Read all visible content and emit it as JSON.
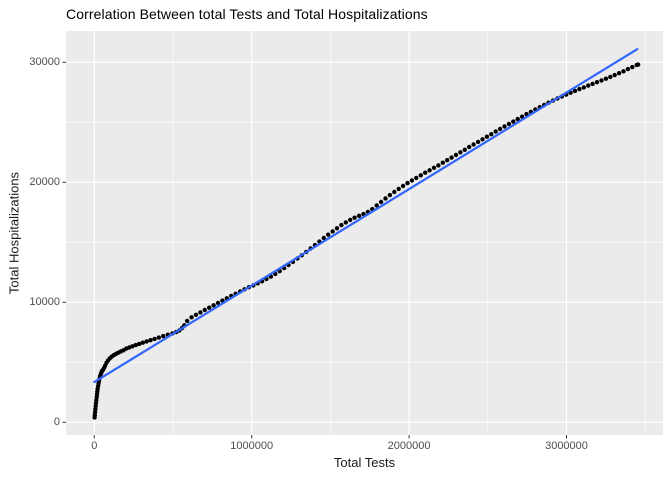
{
  "chart_data": {
    "type": "scatter",
    "title": "Correlation Between total Tests and Total Hospitalizations",
    "xlabel": "Total Tests",
    "ylabel": "Total Hospitalizations",
    "x_ticks": [
      0,
      1000000,
      2000000,
      3000000
    ],
    "x_tick_labels": [
      "0",
      "1000000",
      "2000000",
      "3000000"
    ],
    "x_minor_ticks": [
      500000,
      1500000,
      2500000,
      3500000
    ],
    "y_ticks": [
      0,
      10000,
      20000,
      30000
    ],
    "y_tick_labels": [
      "0",
      "10000",
      "20000",
      "30000"
    ],
    "y_minor_ticks": [
      5000,
      15000,
      25000
    ],
    "xlim": [
      -179800,
      3613000
    ],
    "ylim": [
      -1058,
      32608
    ],
    "grid": "on",
    "legend": "none",
    "theme": {
      "panel_bg": "#EBEBEB",
      "grid_major": "#FFFFFF",
      "grid_minor": "#FFFFFF",
      "axis_tick_color": "#333333",
      "axis_text_color": "#4D4D4D",
      "title_color": "#000000",
      "point_color": "#000000",
      "smooth_line_color": "#3366FF"
    },
    "series": [
      {
        "name": "observations",
        "type": "scatter",
        "color": "#000000",
        "marker_radius": 2.2,
        "points": [
          [
            2000,
            400
          ],
          [
            3000,
            600
          ],
          [
            5000,
            850
          ],
          [
            7000,
            1100
          ],
          [
            9000,
            1350
          ],
          [
            11000,
            1600
          ],
          [
            13000,
            1850
          ],
          [
            15000,
            2100
          ],
          [
            17000,
            2330
          ],
          [
            19000,
            2560
          ],
          [
            21000,
            2780
          ],
          [
            24000,
            3020
          ],
          [
            27000,
            3250
          ],
          [
            30000,
            3460
          ],
          [
            34000,
            3680
          ],
          [
            38000,
            3880
          ],
          [
            43000,
            4080
          ],
          [
            48000,
            4260
          ],
          [
            54000,
            4350
          ],
          [
            61000,
            4500
          ],
          [
            68000,
            4700
          ],
          [
            77000,
            4950
          ],
          [
            87000,
            5150
          ],
          [
            98000,
            5320
          ],
          [
            110000,
            5470
          ],
          [
            123000,
            5590
          ],
          [
            137000,
            5700
          ],
          [
            152000,
            5800
          ],
          [
            168000,
            5900
          ],
          [
            185000,
            6000
          ],
          [
            203000,
            6140
          ],
          [
            222000,
            6230
          ],
          [
            242000,
            6330
          ],
          [
            263000,
            6430
          ],
          [
            285000,
            6530
          ],
          [
            308000,
            6630
          ],
          [
            332000,
            6730
          ],
          [
            357000,
            6840
          ],
          [
            383000,
            6950
          ],
          [
            410000,
            7060
          ],
          [
            438000,
            7180
          ],
          [
            467000,
            7300
          ],
          [
            497000,
            7410
          ],
          [
            520000,
            7520
          ],
          [
            540000,
            7650
          ],
          [
            557000,
            7850
          ],
          [
            572000,
            8080
          ],
          [
            590000,
            8450
          ],
          [
            618000,
            8750
          ],
          [
            646000,
            8960
          ],
          [
            674000,
            9160
          ],
          [
            702000,
            9360
          ],
          [
            730000,
            9550
          ],
          [
            758000,
            9750
          ],
          [
            786000,
            9940
          ],
          [
            814000,
            10140
          ],
          [
            842000,
            10330
          ],
          [
            870000,
            10530
          ],
          [
            898000,
            10710
          ],
          [
            926000,
            10900
          ],
          [
            954000,
            11080
          ],
          [
            982000,
            11260
          ],
          [
            1010000,
            11410
          ],
          [
            1038000,
            11580
          ],
          [
            1066000,
            11750
          ],
          [
            1094000,
            11940
          ],
          [
            1122000,
            12140
          ],
          [
            1150000,
            12370
          ],
          [
            1178000,
            12600
          ],
          [
            1206000,
            12850
          ],
          [
            1234000,
            13110
          ],
          [
            1262000,
            13370
          ],
          [
            1290000,
            13650
          ],
          [
            1318000,
            13920
          ],
          [
            1346000,
            14200
          ],
          [
            1374000,
            14480
          ],
          [
            1402000,
            14770
          ],
          [
            1430000,
            15060
          ],
          [
            1458000,
            15360
          ],
          [
            1486000,
            15630
          ],
          [
            1514000,
            15910
          ],
          [
            1542000,
            16170
          ],
          [
            1570000,
            16430
          ],
          [
            1598000,
            16660
          ],
          [
            1626000,
            16870
          ],
          [
            1654000,
            17050
          ],
          [
            1682000,
            17210
          ],
          [
            1710000,
            17350
          ],
          [
            1738000,
            17530
          ],
          [
            1766000,
            17770
          ],
          [
            1794000,
            18070
          ],
          [
            1822000,
            18360
          ],
          [
            1850000,
            18650
          ],
          [
            1878000,
            18930
          ],
          [
            1906000,
            19190
          ],
          [
            1934000,
            19450
          ],
          [
            1962000,
            19690
          ],
          [
            1990000,
            19930
          ],
          [
            2018000,
            20150
          ],
          [
            2046000,
            20370
          ],
          [
            2074000,
            20580
          ],
          [
            2102000,
            20800
          ],
          [
            2130000,
            21000
          ],
          [
            2158000,
            21210
          ],
          [
            2186000,
            21410
          ],
          [
            2214000,
            21630
          ],
          [
            2242000,
            21840
          ],
          [
            2270000,
            22060
          ],
          [
            2298000,
            22280
          ],
          [
            2326000,
            22500
          ],
          [
            2354000,
            22710
          ],
          [
            2382000,
            22940
          ],
          [
            2410000,
            23150
          ],
          [
            2438000,
            23370
          ],
          [
            2466000,
            23580
          ],
          [
            2494000,
            23800
          ],
          [
            2522000,
            24010
          ],
          [
            2550000,
            24230
          ],
          [
            2578000,
            24440
          ],
          [
            2606000,
            24650
          ],
          [
            2634000,
            24860
          ],
          [
            2662000,
            25060
          ],
          [
            2690000,
            25270
          ],
          [
            2718000,
            25470
          ],
          [
            2746000,
            25680
          ],
          [
            2774000,
            25870
          ],
          [
            2802000,
            26070
          ],
          [
            2830000,
            26260
          ],
          [
            2858000,
            26450
          ],
          [
            2886000,
            26630
          ],
          [
            2914000,
            26810
          ],
          [
            2942000,
            26980
          ],
          [
            2970000,
            27150
          ],
          [
            2998000,
            27310
          ],
          [
            3026000,
            27470
          ],
          [
            3054000,
            27620
          ],
          [
            3082000,
            27770
          ],
          [
            3110000,
            27910
          ],
          [
            3138000,
            28060
          ],
          [
            3166000,
            28200
          ],
          [
            3194000,
            28340
          ],
          [
            3222000,
            28480
          ],
          [
            3250000,
            28630
          ],
          [
            3278000,
            28780
          ],
          [
            3306000,
            28930
          ],
          [
            3334000,
            29090
          ],
          [
            3362000,
            29250
          ],
          [
            3390000,
            29430
          ],
          [
            3418000,
            29600
          ],
          [
            3446000,
            29780
          ],
          [
            3455000,
            29810
          ]
        ]
      },
      {
        "name": "linear-fit",
        "type": "line",
        "color": "#3366FF",
        "line_width": 2.2,
        "points": [
          [
            0,
            3350
          ],
          [
            3450000,
            31100
          ]
        ]
      }
    ]
  }
}
